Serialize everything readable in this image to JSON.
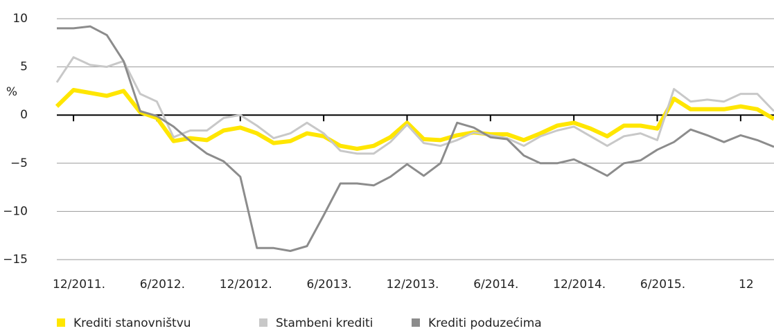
{
  "chart_data": {
    "type": "line",
    "ylabel": "%",
    "categories": [
      null,
      "12/2011.",
      null,
      null,
      null,
      null,
      "6/2012.",
      null,
      null,
      null,
      null,
      "12/2012.",
      null,
      null,
      null,
      null,
      "6/2013.",
      null,
      null,
      null,
      null,
      "12/2013.",
      null,
      null,
      null,
      null,
      "6/2014.",
      null,
      null,
      null,
      null,
      "12/2014.",
      null,
      null,
      null,
      null,
      "6/2015.",
      null,
      null,
      null,
      null,
      "12",
      null,
      null
    ],
    "series": [
      {
        "name": "Krediti stanovništvu",
        "color": "#ffe600",
        "values": [
          0.9,
          2.6,
          2.3,
          2.0,
          2.5,
          0.3,
          -0.3,
          -2.7,
          -2.4,
          -2.6,
          -1.6,
          -1.3,
          -1.9,
          -2.9,
          -2.7,
          -1.9,
          -2.2,
          -3.2,
          -3.5,
          -3.2,
          -2.3,
          -0.8,
          -2.5,
          -2.6,
          -2.1,
          -1.8,
          -2.0,
          -2.0,
          -2.6,
          -1.9,
          -1.1,
          -0.8,
          -1.4,
          -2.2,
          -1.1,
          -1.1,
          -1.4,
          1.7,
          0.6,
          0.6,
          0.6,
          0.9,
          0.6,
          -0.4
        ]
      },
      {
        "name": "Stambeni krediti",
        "color": "#c8c8c8",
        "values": [
          3.4,
          6.0,
          5.2,
          5.0,
          5.6,
          2.2,
          1.4,
          -2.3,
          -1.6,
          -1.6,
          -0.3,
          0,
          -1.1,
          -2.4,
          -1.9,
          -0.8,
          -1.9,
          -3.7,
          -4.0,
          -4.0,
          -2.8,
          -1.0,
          -2.9,
          -3.2,
          -2.6,
          -1.8,
          -2.1,
          -2.4,
          -3.2,
          -2.2,
          -1.6,
          -1.2,
          -2.2,
          -3.2,
          -2.2,
          -1.9,
          -2.6,
          2.7,
          1.4,
          1.6,
          1.4,
          2.2,
          2.2,
          0.4
        ]
      },
      {
        "name": "Krediti poduzećima",
        "color": "#8c8c8c",
        "values": [
          9.0,
          9.0,
          9.2,
          8.3,
          5.6,
          0.4,
          -0.1,
          -1.2,
          -2.7,
          -4.0,
          -4.8,
          -6.4,
          -13.8,
          -13.8,
          -14.1,
          -13.6,
          -10.4,
          -7.1,
          -7.1,
          -7.3,
          -6.4,
          -5.1,
          -6.3,
          -5.0,
          -0.8,
          -1.3,
          -2.3,
          -2.5,
          -4.2,
          -5.0,
          -5.0,
          -4.6,
          -5.4,
          -6.3,
          -5.0,
          -4.7,
          -3.6,
          -2.8,
          -1.5,
          -2.1,
          -2.8,
          -2.1,
          -2.6,
          -3.3
        ]
      }
    ],
    "ylim": [
      -15,
      10
    ],
    "yticks": [
      {
        "value": -15,
        "label": "−15"
      },
      {
        "value": -10,
        "label": "−10"
      },
      {
        "value": -5,
        "label": "−5"
      },
      0,
      5,
      10
    ],
    "grid": true,
    "legend": "bottom"
  }
}
